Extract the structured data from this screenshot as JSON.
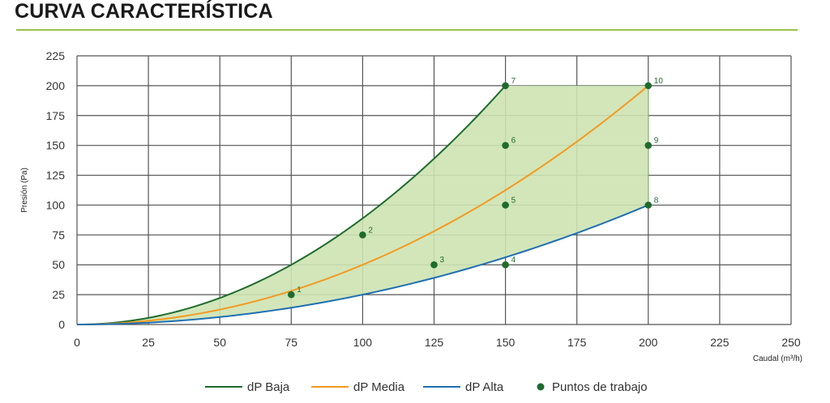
{
  "title": "CURVA CARACTERÍSTICA",
  "colors": {
    "title_rule": "#9bc24a",
    "baja": "#1e6b2c",
    "media": "#f39a21",
    "alta": "#1f6fb2",
    "points": "#1f6b2e",
    "fill": "#cde3b3",
    "grid": "#555555"
  },
  "chart_data": {
    "type": "line",
    "xlabel": "Caudal (m³/h)",
    "ylabel": "Presión (Pa)",
    "xlim": [
      0,
      250
    ],
    "ylim": [
      0,
      225
    ],
    "xticks": [
      0,
      25,
      50,
      75,
      100,
      125,
      150,
      175,
      200,
      225,
      250
    ],
    "yticks": [
      0,
      25,
      50,
      75,
      100,
      125,
      150,
      175,
      200,
      225
    ],
    "grid": true,
    "legend_position": "bottom",
    "series": [
      {
        "name": "dP Baja",
        "x": [
          0,
          25,
          50,
          75,
          100,
          125,
          150
        ],
        "y": [
          0,
          5.6,
          22.2,
          50,
          88.9,
          138.9,
          200
        ]
      },
      {
        "name": "dP Media",
        "x": [
          0,
          25,
          50,
          75,
          100,
          125,
          150,
          175,
          200
        ],
        "y": [
          0,
          3.1,
          12.5,
          28.1,
          50,
          78.1,
          112.5,
          153.1,
          200
        ]
      },
      {
        "name": "dP Alta",
        "x": [
          0,
          25,
          50,
          75,
          100,
          125,
          150,
          175,
          200
        ],
        "y": [
          0,
          1.6,
          6.3,
          14.1,
          25,
          39.1,
          56.3,
          76.6,
          100
        ]
      }
    ],
    "shaded_region": "Área de funcionamiento entre dP Baja y dP Alta",
    "points_series": {
      "name": "Puntos de trabajo",
      "points": [
        {
          "label": "1",
          "x": 75,
          "y": 25
        },
        {
          "label": "2",
          "x": 100,
          "y": 75
        },
        {
          "label": "3",
          "x": 125,
          "y": 50
        },
        {
          "label": "4",
          "x": 150,
          "y": 50
        },
        {
          "label": "5",
          "x": 150,
          "y": 100
        },
        {
          "label": "6",
          "x": 150,
          "y": 150
        },
        {
          "label": "7",
          "x": 150,
          "y": 200
        },
        {
          "label": "8",
          "x": 200,
          "y": 100
        },
        {
          "label": "9",
          "x": 200,
          "y": 150
        },
        {
          "label": "10",
          "x": 200,
          "y": 200
        }
      ]
    },
    "legend": [
      "dP Baja",
      "dP Media",
      "dP Alta",
      "Puntos de trabajo"
    ]
  }
}
